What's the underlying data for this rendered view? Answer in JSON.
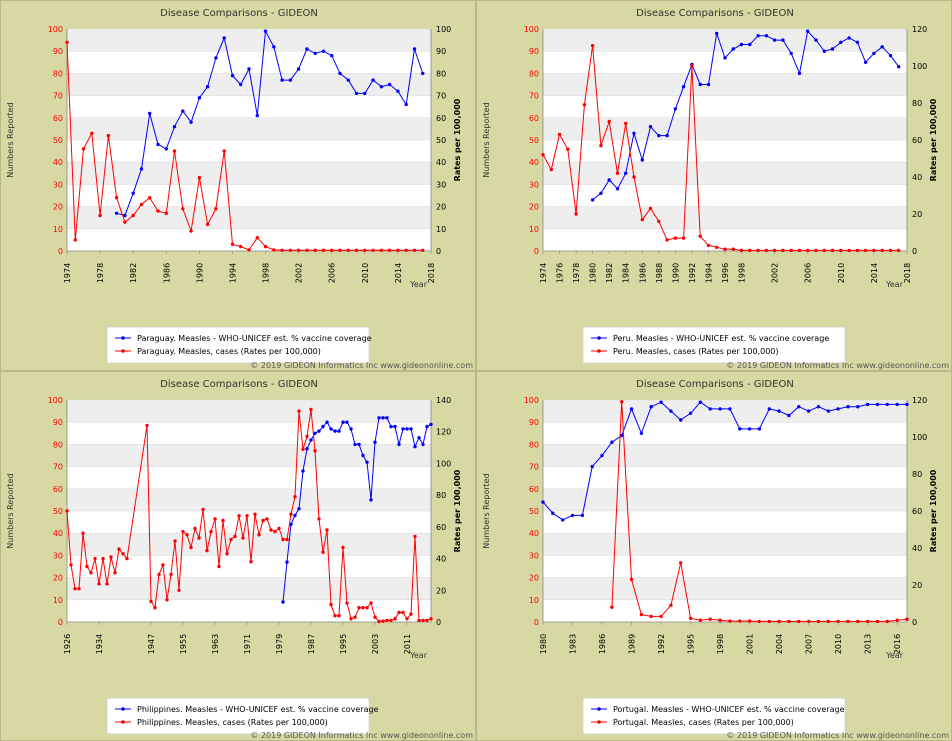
{
  "copyright": "© 2019 GIDEON Informatics Inc www.gideononline.com",
  "colors": {
    "coverage": "#0000ff",
    "cases": "#ff0000",
    "panel_bg": "#d8d8a2"
  },
  "chart_data": [
    {
      "id": "paraguay",
      "type": "line",
      "title": "Disease Comparisons - GIDEON",
      "ylabel_left": "Numbers Reported",
      "ylabel_right": "Rates per 100,000",
      "xlabel": "Year",
      "xlim": [
        1974,
        2018
      ],
      "ylim_left": [
        0,
        100
      ],
      "ylim_right": [
        0,
        100
      ],
      "yticks_left": [
        0,
        10,
        20,
        30,
        40,
        50,
        60,
        70,
        80,
        90,
        100
      ],
      "yticks_right": [
        0,
        10,
        20,
        30,
        40,
        50,
        60,
        70,
        80,
        90,
        100
      ],
      "xticks": [
        1974,
        1978,
        1982,
        1986,
        1990,
        1994,
        1998,
        2002,
        2006,
        2010,
        2014,
        2018
      ],
      "series": [
        {
          "name": "Paraguay. Measles - WHO-UNICEF est. % vaccine coverage",
          "color": "#0000ff",
          "axis": "left",
          "x": [
            1980,
            1981,
            1982,
            1983,
            1984,
            1985,
            1986,
            1987,
            1988,
            1989,
            1990,
            1991,
            1992,
            1993,
            1994,
            1995,
            1996,
            1997,
            1998,
            1999,
            2000,
            2001,
            2002,
            2003,
            2004,
            2005,
            2006,
            2007,
            2008,
            2009,
            2010,
            2011,
            2012,
            2013,
            2014,
            2015,
            2016,
            2017
          ],
          "y": [
            17,
            16,
            26,
            37,
            62,
            48,
            46,
            56,
            63,
            58,
            69,
            74,
            87,
            96,
            79,
            75,
            82,
            61,
            99,
            92,
            77,
            77,
            82,
            91,
            89,
            90,
            88,
            80,
            77,
            71,
            71,
            77,
            74,
            75,
            72,
            66,
            91,
            80
          ]
        },
        {
          "name": "Paraguay. Measles, cases (Rates per 100,000)",
          "color": "#ff0000",
          "axis": "right",
          "x": [
            1974,
            1975,
            1976,
            1977,
            1978,
            1979,
            1980,
            1981,
            1982,
            1983,
            1984,
            1985,
            1986,
            1987,
            1988,
            1989,
            1990,
            1991,
            1992,
            1993,
            1994,
            1995,
            1996,
            1997,
            1998,
            1999,
            2000,
            2001,
            2002,
            2003,
            2004,
            2005,
            2006,
            2007,
            2008,
            2009,
            2010,
            2011,
            2012,
            2013,
            2014,
            2015,
            2016,
            2017
          ],
          "y": [
            94,
            5,
            46,
            53,
            16,
            52,
            24,
            13,
            16,
            21,
            24,
            18,
            17,
            45,
            19,
            9,
            33,
            12,
            19,
            45,
            3,
            2,
            0.5,
            6,
            2,
            0.5,
            0.3,
            0.3,
            0.3,
            0.3,
            0.3,
            0.3,
            0.3,
            0.3,
            0.3,
            0.3,
            0.3,
            0.3,
            0.3,
            0.3,
            0.3,
            0.3,
            0.3,
            0.3
          ]
        }
      ]
    },
    {
      "id": "peru",
      "type": "line",
      "title": "Disease Comparisons - GIDEON",
      "ylabel_left": "Numbers Reported",
      "ylabel_right": "Rates per 100,000",
      "xlabel": "Year",
      "xlim": [
        1974,
        2018
      ],
      "ylim_left": [
        0,
        100
      ],
      "ylim_right": [
        0,
        120
      ],
      "yticks_left": [
        0,
        10,
        20,
        30,
        40,
        50,
        60,
        70,
        80,
        90,
        100
      ],
      "yticks_right": [
        0,
        20,
        40,
        60,
        80,
        100,
        120
      ],
      "xticks": [
        1974,
        1976,
        1978,
        1980,
        1982,
        1984,
        1986,
        1988,
        1990,
        1992,
        1994,
        1996,
        1998,
        2002,
        2006,
        2010,
        2014,
        2018
      ],
      "series": [
        {
          "name": "Peru. Measles - WHO-UNICEF est. % vaccine coverage",
          "color": "#0000ff",
          "axis": "left",
          "x": [
            1980,
            1981,
            1982,
            1983,
            1984,
            1985,
            1986,
            1987,
            1988,
            1989,
            1990,
            1991,
            1992,
            1993,
            1994,
            1995,
            1996,
            1997,
            1998,
            1999,
            2000,
            2001,
            2002,
            2003,
            2004,
            2005,
            2006,
            2007,
            2008,
            2009,
            2010,
            2011,
            2012,
            2013,
            2014,
            2015,
            2016,
            2017
          ],
          "y": [
            23,
            26,
            32,
            28,
            35,
            53,
            41,
            56,
            52,
            52,
            64,
            74,
            84,
            75,
            75,
            98,
            87,
            91,
            93,
            93,
            97,
            97,
            95,
            95,
            89,
            80,
            99,
            95,
            90,
            91,
            94,
            96,
            94,
            85,
            89,
            92,
            88,
            83
          ]
        },
        {
          "name": "Peru. Measles, cases (Rates per 100,000)",
          "color": "#ff0000",
          "axis": "right",
          "x": [
            1974,
            1975,
            1976,
            1977,
            1978,
            1979,
            1980,
            1981,
            1982,
            1983,
            1984,
            1985,
            1986,
            1987,
            1988,
            1989,
            1990,
            1991,
            1992,
            1993,
            1994,
            1995,
            1996,
            1997,
            1998,
            1999,
            2000,
            2001,
            2002,
            2003,
            2004,
            2005,
            2006,
            2007,
            2008,
            2009,
            2010,
            2011,
            2012,
            2013,
            2014,
            2015,
            2016,
            2017
          ],
          "y": [
            52,
            44,
            63,
            55,
            20,
            79,
            111,
            57,
            70,
            42,
            69,
            40,
            17,
            23,
            16,
            6,
            7,
            7,
            100,
            8,
            3,
            2,
            1,
            1,
            0.3,
            0.3,
            0.3,
            0.3,
            0.3,
            0.3,
            0.3,
            0.3,
            0.3,
            0.3,
            0.3,
            0.3,
            0.3,
            0.3,
            0.3,
            0.3,
            0.3,
            0.3,
            0.3,
            0.3
          ]
        }
      ]
    },
    {
      "id": "philippines",
      "type": "line",
      "title": "Disease Comparisons - GIDEON",
      "ylabel_left": "Numbers Reported",
      "ylabel_right": "Rates per 100,000",
      "xlabel": "Year",
      "xlim": [
        1926,
        2017
      ],
      "ylim_left": [
        0,
        100
      ],
      "ylim_right": [
        0,
        140
      ],
      "yticks_left": [
        0,
        10,
        20,
        30,
        40,
        50,
        60,
        70,
        80,
        90,
        100
      ],
      "yticks_right": [
        0,
        20,
        40,
        60,
        80,
        100,
        120,
        140
      ],
      "xticks": [
        1926,
        1934,
        1947,
        1955,
        1963,
        1971,
        1979,
        1987,
        1995,
        2003,
        2011
      ],
      "series": [
        {
          "name": "Philippines. Measles - WHO-UNICEF est. % vaccine coverage",
          "color": "#0000ff",
          "axis": "left",
          "x": [
            1980,
            1981,
            1982,
            1983,
            1984,
            1985,
            1986,
            1987,
            1988,
            1989,
            1990,
            1991,
            1992,
            1993,
            1994,
            1995,
            1996,
            1997,
            1998,
            1999,
            2000,
            2001,
            2002,
            2003,
            2004,
            2005,
            2006,
            2007,
            2008,
            2009,
            2010,
            2011,
            2012,
            2013,
            2014,
            2015,
            2016,
            2017
          ],
          "y": [
            9,
            27,
            44,
            48,
            51,
            68,
            78,
            82,
            85,
            86,
            88,
            90,
            87,
            86,
            86,
            90,
            90,
            87,
            80,
            80,
            75,
            72,
            55,
            81,
            92,
            92,
            92,
            88,
            88,
            80,
            87,
            87,
            87,
            79,
            83,
            80,
            88,
            89
          ]
        },
        {
          "name": "Philippines. Measles, cases (Rates per 100,000)",
          "color": "#ff0000",
          "axis": "right",
          "x": [
            1926,
            1927,
            1928,
            1929,
            1930,
            1931,
            1932,
            1933,
            1934,
            1935,
            1936,
            1937,
            1938,
            1939,
            1940,
            1941,
            1946,
            1947,
            1948,
            1949,
            1950,
            1951,
            1952,
            1953,
            1954,
            1955,
            1956,
            1957,
            1958,
            1959,
            1960,
            1961,
            1962,
            1963,
            1964,
            1965,
            1966,
            1967,
            1968,
            1969,
            1970,
            1971,
            1972,
            1973,
            1974,
            1975,
            1976,
            1977,
            1978,
            1979,
            1980,
            1981,
            1982,
            1983,
            1984,
            1985,
            1986,
            1987,
            1988,
            1989,
            1990,
            1991,
            1992,
            1993,
            1994,
            1995,
            1996,
            1997,
            1998,
            1999,
            2000,
            2001,
            2002,
            2003,
            2004,
            2005,
            2006,
            2007,
            2008,
            2009,
            2010,
            2011,
            2012,
            2013,
            2014,
            2015,
            2016,
            2017
          ],
          "y": [
            70,
            36,
            21,
            21,
            56,
            35,
            31,
            40,
            24,
            40,
            24,
            41,
            31,
            46,
            43,
            40,
            124,
            13,
            9,
            30,
            36,
            14,
            30,
            51,
            20,
            57,
            55,
            47,
            59,
            53,
            71,
            45,
            57,
            65,
            35,
            64,
            43,
            52,
            54,
            67,
            53,
            67,
            38,
            68,
            55,
            64,
            65,
            58,
            57,
            59,
            52,
            52,
            68,
            79,
            133,
            109,
            117,
            134,
            108,
            65,
            44,
            58,
            11,
            4,
            4,
            47,
            12,
            2,
            3,
            9,
            9,
            9,
            12,
            3,
            0.3,
            0.5,
            1,
            1,
            2,
            6,
            6,
            2,
            5,
            54,
            1,
            1,
            1,
            2
          ]
        }
      ]
    },
    {
      "id": "portugal",
      "type": "line",
      "title": "Disease Comparisons - GIDEON",
      "ylabel_left": "Numbers Reported",
      "ylabel_right": "Rates per 100,000",
      "xlabel": "Year",
      "xlim": [
        1980,
        2017
      ],
      "ylim_left": [
        0,
        100
      ],
      "ylim_right": [
        0,
        120
      ],
      "yticks_left": [
        0,
        10,
        20,
        30,
        40,
        50,
        60,
        70,
        80,
        90,
        100
      ],
      "yticks_right": [
        0,
        20,
        40,
        60,
        80,
        100,
        120
      ],
      "xticks": [
        1980,
        1983,
        1986,
        1989,
        1992,
        1995,
        1998,
        2001,
        2004,
        2007,
        2010,
        2013,
        2016
      ],
      "series": [
        {
          "name": "Portugal. Measles - WHO-UNICEF est. % vaccine coverage",
          "color": "#0000ff",
          "axis": "left",
          "x": [
            1980,
            1981,
            1982,
            1983,
            1984,
            1985,
            1986,
            1987,
            1988,
            1989,
            1990,
            1991,
            1992,
            1993,
            1994,
            1995,
            1996,
            1997,
            1998,
            1999,
            2000,
            2001,
            2002,
            2003,
            2004,
            2005,
            2006,
            2007,
            2008,
            2009,
            2010,
            2011,
            2012,
            2013,
            2014,
            2015,
            2016,
            2017
          ],
          "y": [
            54,
            49,
            46,
            48,
            48,
            70,
            75,
            81,
            84,
            96,
            85,
            97,
            99,
            95,
            91,
            94,
            99,
            96,
            96,
            96,
            87,
            87,
            87,
            96,
            95,
            93,
            97,
            95,
            97,
            95,
            96,
            97,
            97,
            98,
            98,
            98,
            98,
            98
          ]
        },
        {
          "name": "Portugal. Measles, cases (Rates per 100,000)",
          "color": "#ff0000",
          "axis": "right",
          "x": [
            1987,
            1988,
            1989,
            1990,
            1991,
            1992,
            1993,
            1994,
            1995,
            1996,
            1997,
            1998,
            1999,
            2000,
            2001,
            2002,
            2003,
            2004,
            2005,
            2006,
            2007,
            2008,
            2009,
            2010,
            2011,
            2012,
            2013,
            2014,
            2015,
            2016,
            2017
          ],
          "y": [
            8,
            119,
            23,
            4,
            3,
            3,
            9,
            32,
            2,
            1,
            1.5,
            1,
            0.5,
            0.5,
            0.5,
            0.3,
            0.3,
            0.3,
            0.3,
            0.3,
            0.3,
            0.3,
            0.3,
            0.3,
            0.3,
            0.3,
            0.3,
            0.3,
            0.3,
            1,
            1.5
          ]
        }
      ]
    }
  ]
}
